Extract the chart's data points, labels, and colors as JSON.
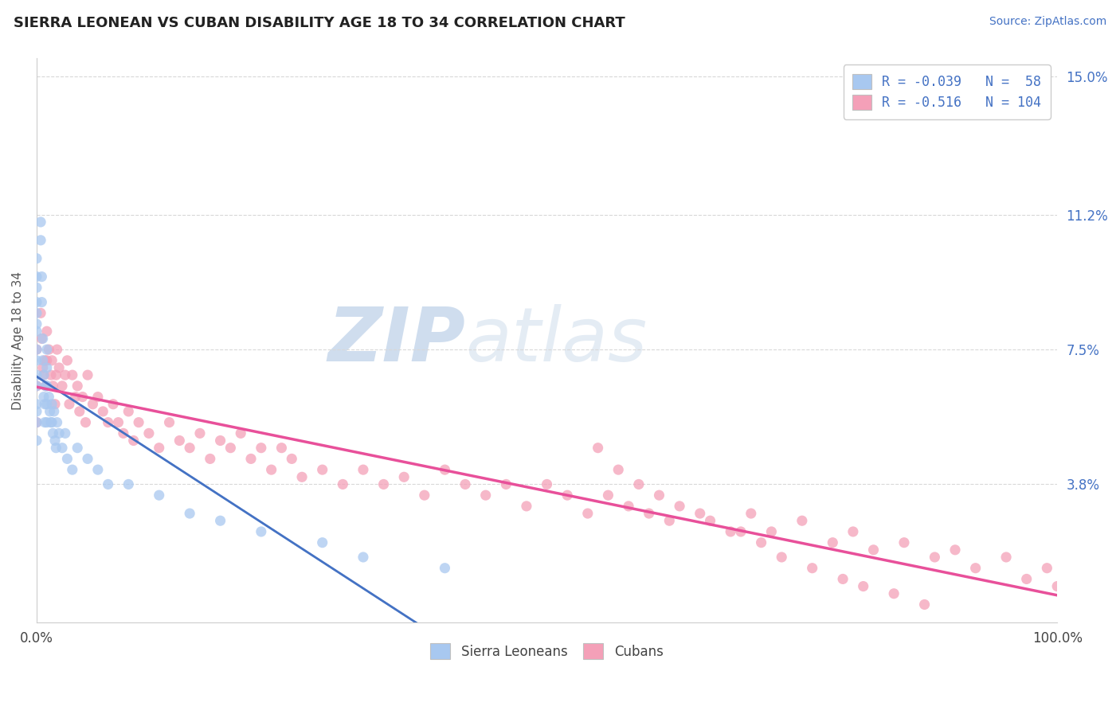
{
  "title": "SIERRA LEONEAN VS CUBAN DISABILITY AGE 18 TO 34 CORRELATION CHART",
  "source": "Source: ZipAtlas.com",
  "ylabel": "Disability Age 18 to 34",
  "xlim": [
    0.0,
    1.0
  ],
  "ylim": [
    0.0,
    0.155
  ],
  "y_tick_labels": [
    "3.8%",
    "7.5%",
    "11.2%",
    "15.0%"
  ],
  "y_tick_values": [
    0.038,
    0.075,
    0.112,
    0.15
  ],
  "legend_r1": "R = -0.039   N =  58",
  "legend_r2": "R = -0.516   N = 104",
  "color_sierra": "#a8c8f0",
  "color_cuba": "#f4a0b8",
  "background_color": "#ffffff",
  "watermark_zip": "ZIP",
  "watermark_atlas": "atlas",
  "sierra_x": [
    0.0,
    0.0,
    0.0,
    0.0,
    0.0,
    0.0,
    0.0,
    0.0,
    0.0,
    0.0,
    0.0,
    0.0,
    0.0,
    0.0,
    0.0,
    0.004,
    0.004,
    0.005,
    0.005,
    0.006,
    0.006,
    0.007,
    0.007,
    0.008,
    0.008,
    0.009,
    0.01,
    0.01,
    0.01,
    0.01,
    0.01,
    0.012,
    0.013,
    0.014,
    0.015,
    0.015,
    0.016,
    0.017,
    0.018,
    0.019,
    0.02,
    0.022,
    0.025,
    0.028,
    0.03,
    0.035,
    0.04,
    0.05,
    0.06,
    0.07,
    0.09,
    0.12,
    0.15,
    0.18,
    0.22,
    0.28,
    0.32,
    0.4
  ],
  "sierra_y": [
    0.1,
    0.095,
    0.092,
    0.088,
    0.085,
    0.082,
    0.08,
    0.075,
    0.072,
    0.068,
    0.065,
    0.06,
    0.058,
    0.055,
    0.05,
    0.11,
    0.105,
    0.095,
    0.088,
    0.078,
    0.072,
    0.068,
    0.062,
    0.06,
    0.055,
    0.065,
    0.075,
    0.07,
    0.065,
    0.06,
    0.055,
    0.062,
    0.058,
    0.055,
    0.06,
    0.055,
    0.052,
    0.058,
    0.05,
    0.048,
    0.055,
    0.052,
    0.048,
    0.052,
    0.045,
    0.042,
    0.048,
    0.045,
    0.042,
    0.038,
    0.038,
    0.035,
    0.03,
    0.028,
    0.025,
    0.022,
    0.018,
    0.015
  ],
  "cuba_x": [
    0.0,
    0.0,
    0.0,
    0.004,
    0.005,
    0.006,
    0.007,
    0.008,
    0.009,
    0.01,
    0.01,
    0.012,
    0.014,
    0.015,
    0.016,
    0.018,
    0.019,
    0.02,
    0.022,
    0.025,
    0.028,
    0.03,
    0.032,
    0.035,
    0.038,
    0.04,
    0.042,
    0.045,
    0.048,
    0.05,
    0.055,
    0.06,
    0.065,
    0.07,
    0.075,
    0.08,
    0.085,
    0.09,
    0.095,
    0.1,
    0.11,
    0.12,
    0.13,
    0.14,
    0.15,
    0.16,
    0.17,
    0.18,
    0.19,
    0.2,
    0.21,
    0.22,
    0.23,
    0.24,
    0.25,
    0.26,
    0.28,
    0.3,
    0.32,
    0.34,
    0.36,
    0.38,
    0.4,
    0.42,
    0.44,
    0.46,
    0.48,
    0.5,
    0.52,
    0.54,
    0.56,
    0.58,
    0.6,
    0.62,
    0.65,
    0.68,
    0.7,
    0.72,
    0.75,
    0.78,
    0.8,
    0.82,
    0.85,
    0.88,
    0.9,
    0.92,
    0.95,
    0.97,
    0.99,
    1.0,
    0.55,
    0.57,
    0.59,
    0.61,
    0.63,
    0.66,
    0.69,
    0.71,
    0.73,
    0.76,
    0.79,
    0.81,
    0.84,
    0.87
  ],
  "cuba_y": [
    0.075,
    0.065,
    0.055,
    0.085,
    0.078,
    0.07,
    0.068,
    0.072,
    0.065,
    0.08,
    0.072,
    0.075,
    0.068,
    0.072,
    0.065,
    0.06,
    0.068,
    0.075,
    0.07,
    0.065,
    0.068,
    0.072,
    0.06,
    0.068,
    0.062,
    0.065,
    0.058,
    0.062,
    0.055,
    0.068,
    0.06,
    0.062,
    0.058,
    0.055,
    0.06,
    0.055,
    0.052,
    0.058,
    0.05,
    0.055,
    0.052,
    0.048,
    0.055,
    0.05,
    0.048,
    0.052,
    0.045,
    0.05,
    0.048,
    0.052,
    0.045,
    0.048,
    0.042,
    0.048,
    0.045,
    0.04,
    0.042,
    0.038,
    0.042,
    0.038,
    0.04,
    0.035,
    0.042,
    0.038,
    0.035,
    0.038,
    0.032,
    0.038,
    0.035,
    0.03,
    0.035,
    0.032,
    0.03,
    0.028,
    0.03,
    0.025,
    0.03,
    0.025,
    0.028,
    0.022,
    0.025,
    0.02,
    0.022,
    0.018,
    0.02,
    0.015,
    0.018,
    0.012,
    0.015,
    0.01,
    0.048,
    0.042,
    0.038,
    0.035,
    0.032,
    0.028,
    0.025,
    0.022,
    0.018,
    0.015,
    0.012,
    0.01,
    0.008,
    0.005
  ]
}
